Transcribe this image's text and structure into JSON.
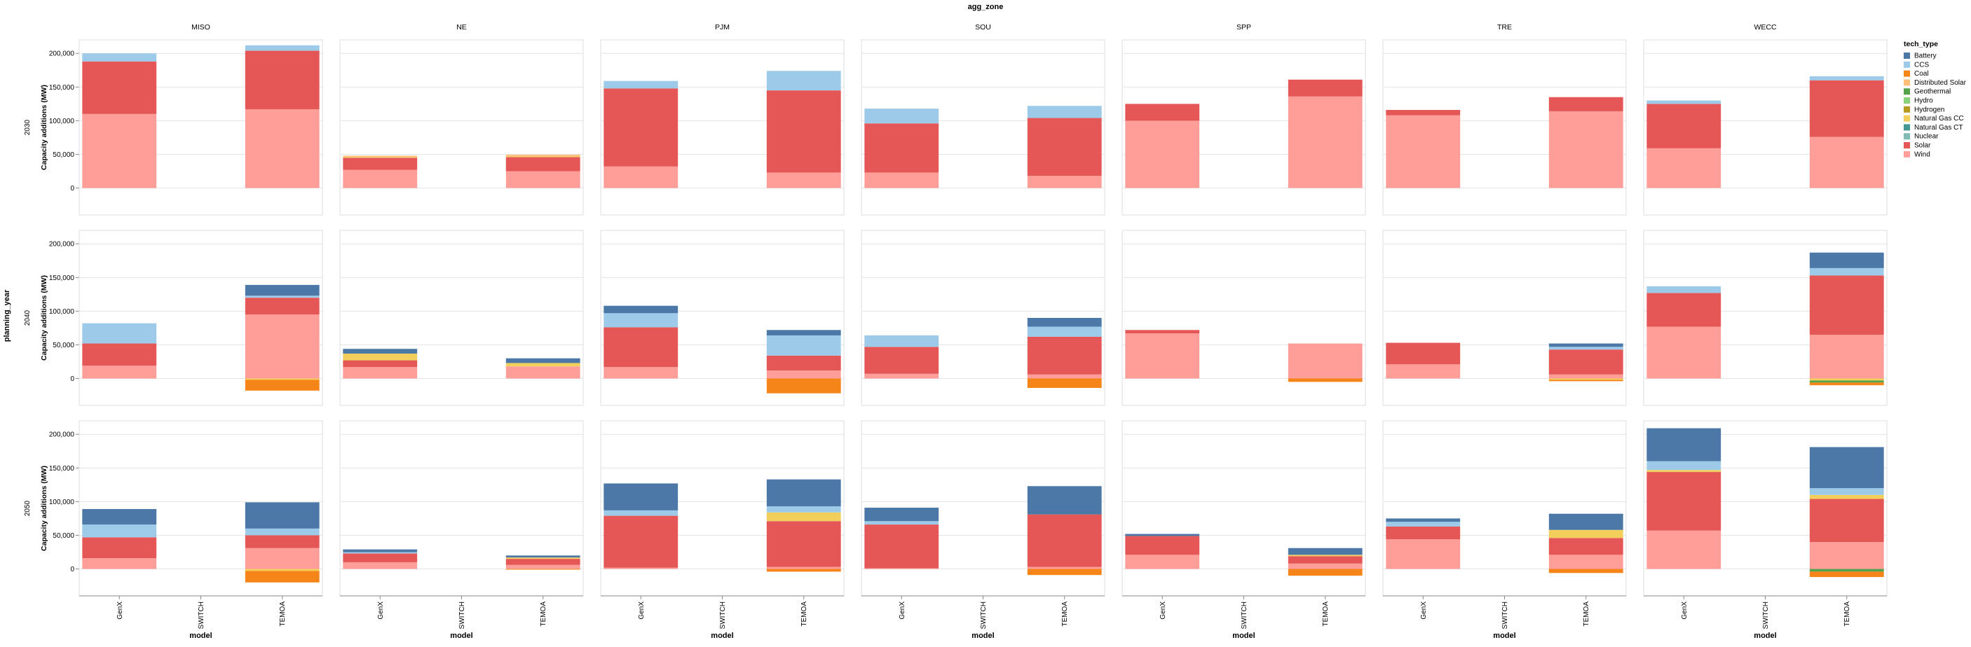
{
  "chart_data": {
    "type": "bar",
    "stacked": true,
    "title": "agg_zone",
    "ylabel": "Capacity additions (MW)",
    "row_title": "planning_year",
    "xlabel": "model",
    "columns": [
      "MISO",
      "NE",
      "PJM",
      "SOU",
      "SPP",
      "TRE",
      "WECC"
    ],
    "rows": [
      "2030",
      "2040",
      "2050"
    ],
    "categories": [
      "GenX",
      "SWITCH",
      "TEMOA"
    ],
    "ylim": [
      -40000,
      220000
    ],
    "yticks": [
      0,
      50000,
      100000,
      150000,
      200000
    ],
    "ytick_labels": [
      "0",
      "50,000",
      "100,000",
      "150,000",
      "200,000"
    ],
    "grid": true,
    "legend": {
      "title": "tech_type",
      "position": "right",
      "entries": [
        "Battery",
        "CCS",
        "Coal",
        "Distributed Solar",
        "Geothermal",
        "Hydro",
        "Hydrogen",
        "Natural Gas CC",
        "Natural Gas CT",
        "Nuclear",
        "Solar",
        "Wind"
      ],
      "colors": [
        "#4c78a8",
        "#9ecae9",
        "#f58518",
        "#ffbf79",
        "#54a24b",
        "#88d27a",
        "#b79a20",
        "#f2cf5b",
        "#439894",
        "#83bcb6",
        "#e45756",
        "#ff9d98"
      ]
    },
    "stack_order": [
      "Wind",
      "Solar",
      "Nuclear",
      "Natural Gas CT",
      "Natural Gas CC",
      "Hydrogen",
      "Hydro",
      "Geothermal",
      "Distributed Solar",
      "Coal",
      "CCS",
      "Battery"
    ],
    "panels": [
      {
        "zone": "MISO",
        "year": "2030",
        "bars": [
          {
            "model": "GenX",
            "values": {
              "Wind": 110000,
              "Solar": 78000,
              "CCS": 12000
            }
          },
          {
            "model": "SWITCH",
            "values": {}
          },
          {
            "model": "TEMOA",
            "values": {
              "Wind": 117000,
              "Solar": 87000,
              "CCS": 8000
            }
          }
        ]
      },
      {
        "zone": "NE",
        "year": "2030",
        "bars": [
          {
            "model": "GenX",
            "values": {
              "Wind": 27000,
              "Solar": 18000,
              "Distributed Solar": 2000,
              "Natural Gas CC": 1000
            }
          },
          {
            "model": "SWITCH",
            "values": {}
          },
          {
            "model": "TEMOA",
            "values": {
              "Wind": 25000,
              "Solar": 21000,
              "Distributed Solar": 2000,
              "Natural Gas CC": 1500
            }
          }
        ]
      },
      {
        "zone": "PJM",
        "year": "2030",
        "bars": [
          {
            "model": "GenX",
            "values": {
              "Wind": 32000,
              "Solar": 116000,
              "CCS": 11000
            }
          },
          {
            "model": "SWITCH",
            "values": {}
          },
          {
            "model": "TEMOA",
            "values": {
              "Wind": 23000,
              "Solar": 122000,
              "CCS": 29000
            }
          }
        ]
      },
      {
        "zone": "SOU",
        "year": "2030",
        "bars": [
          {
            "model": "GenX",
            "values": {
              "Wind": 23000,
              "Solar": 73000,
              "CCS": 22000
            }
          },
          {
            "model": "SWITCH",
            "values": {}
          },
          {
            "model": "TEMOA",
            "values": {
              "Wind": 18000,
              "Solar": 86000,
              "CCS": 18000
            }
          }
        ]
      },
      {
        "zone": "SPP",
        "year": "2030",
        "bars": [
          {
            "model": "GenX",
            "values": {
              "Wind": 100000,
              "Solar": 25000
            }
          },
          {
            "model": "SWITCH",
            "values": {}
          },
          {
            "model": "TEMOA",
            "values": {
              "Wind": 136000,
              "Solar": 25000
            }
          }
        ]
      },
      {
        "zone": "TRE",
        "year": "2030",
        "bars": [
          {
            "model": "GenX",
            "values": {
              "Wind": 108000,
              "Solar": 8000
            }
          },
          {
            "model": "SWITCH",
            "values": {}
          },
          {
            "model": "TEMOA",
            "values": {
              "Wind": 114000,
              "Solar": 21000
            }
          }
        ]
      },
      {
        "zone": "WECC",
        "year": "2030",
        "bars": [
          {
            "model": "GenX",
            "values": {
              "Wind": 59000,
              "Solar": 66000,
              "CCS": 5000
            }
          },
          {
            "model": "SWITCH",
            "values": {}
          },
          {
            "model": "TEMOA",
            "values": {
              "Wind": 76000,
              "Solar": 84000,
              "CCS": 6000
            }
          }
        ]
      },
      {
        "zone": "MISO",
        "year": "2040",
        "bars": [
          {
            "model": "GenX",
            "values": {
              "Wind": 19000,
              "Solar": 33000,
              "CCS": 30000
            }
          },
          {
            "model": "SWITCH",
            "values": {}
          },
          {
            "model": "TEMOA",
            "values": {
              "Wind": 95000,
              "Solar": 25000,
              "CCS": 3000,
              "Battery": 16000,
              "Natural Gas CC": -2000,
              "Coal": -16000
            }
          }
        ]
      },
      {
        "zone": "NE",
        "year": "2040",
        "bars": [
          {
            "model": "GenX",
            "values": {
              "Wind": 17000,
              "Solar": 10000,
              "Natural Gas CC": 10000,
              "Battery": 7000
            }
          },
          {
            "model": "SWITCH",
            "values": {}
          },
          {
            "model": "TEMOA",
            "values": {
              "Wind": 18000,
              "Natural Gas CC": 5000,
              "Battery": 7000
            }
          }
        ]
      },
      {
        "zone": "PJM",
        "year": "2040",
        "bars": [
          {
            "model": "GenX",
            "values": {
              "Wind": 17000,
              "Solar": 59000,
              "CCS": 21000,
              "Battery": 11000
            }
          },
          {
            "model": "SWITCH",
            "values": {}
          },
          {
            "model": "TEMOA",
            "values": {
              "Wind": 12000,
              "Solar": 22000,
              "CCS": 30000,
              "Battery": 8000,
              "Coal": -22000
            }
          }
        ]
      },
      {
        "zone": "SOU",
        "year": "2040",
        "bars": [
          {
            "model": "GenX",
            "values": {
              "Wind": 7000,
              "Solar": 40000,
              "CCS": 17000
            }
          },
          {
            "model": "SWITCH",
            "values": {}
          },
          {
            "model": "TEMOA",
            "values": {
              "Wind": 6000,
              "Solar": 56000,
              "CCS": 15000,
              "Battery": 13000,
              "Coal": -14000
            }
          }
        ]
      },
      {
        "zone": "SPP",
        "year": "2040",
        "bars": [
          {
            "model": "GenX",
            "values": {
              "Wind": 67000,
              "Solar": 5000
            }
          },
          {
            "model": "SWITCH",
            "values": {}
          },
          {
            "model": "TEMOA",
            "values": {
              "Wind": 52000,
              "Coal": -5000
            }
          }
        ]
      },
      {
        "zone": "TRE",
        "year": "2040",
        "bars": [
          {
            "model": "GenX",
            "values": {
              "Wind": 21000,
              "Solar": 32000
            }
          },
          {
            "model": "SWITCH",
            "values": {}
          },
          {
            "model": "TEMOA",
            "values": {
              "Wind": 6000,
              "Solar": 37000,
              "CCS": 4000,
              "Battery": 5000,
              "Natural Gas CC": -2000,
              "Coal": -2000
            }
          }
        ]
      },
      {
        "zone": "WECC",
        "year": "2040",
        "bars": [
          {
            "model": "GenX",
            "values": {
              "Wind": 77000,
              "Solar": 50000,
              "CCS": 10000
            }
          },
          {
            "model": "SWITCH",
            "values": {}
          },
          {
            "model": "TEMOA",
            "values": {
              "Wind": 65000,
              "Solar": 88000,
              "CCS": 11000,
              "Battery": 23000,
              "Natural Gas CC": -3000,
              "Geothermal": -3000,
              "Coal": -4000
            }
          }
        ]
      },
      {
        "zone": "MISO",
        "year": "2050",
        "bars": [
          {
            "model": "GenX",
            "values": {
              "Wind": 16000,
              "Solar": 31000,
              "CCS": 19000,
              "Battery": 23000
            }
          },
          {
            "model": "SWITCH",
            "values": {}
          },
          {
            "model": "TEMOA",
            "values": {
              "Wind": 31000,
              "Solar": 19000,
              "CCS": 10000,
              "Battery": 39000,
              "Natural Gas CC": -3000,
              "Coal": -17000
            }
          }
        ]
      },
      {
        "zone": "NE",
        "year": "2050",
        "bars": [
          {
            "model": "GenX",
            "values": {
              "Wind": 10000,
              "Solar": 13000,
              "CCS": 2000,
              "Battery": 4000
            }
          },
          {
            "model": "SWITCH",
            "values": {}
          },
          {
            "model": "TEMOA",
            "values": {
              "Wind": 6000,
              "Solar": 9000,
              "Natural Gas CC": 2000,
              "Battery": 3000,
              "Coal": -1000
            }
          }
        ]
      },
      {
        "zone": "PJM",
        "year": "2050",
        "bars": [
          {
            "model": "GenX",
            "values": {
              "Wind": 2000,
              "Solar": 77000,
              "CCS": 8000,
              "Battery": 40000
            }
          },
          {
            "model": "SWITCH",
            "values": {}
          },
          {
            "model": "TEMOA",
            "values": {
              "Wind": 3000,
              "Solar": 68000,
              "Natural Gas CC": 13000,
              "CCS": 9000,
              "Battery": 40000,
              "Coal": -4000
            }
          }
        ]
      },
      {
        "zone": "SOU",
        "year": "2050",
        "bars": [
          {
            "model": "GenX",
            "values": {
              "Wind": 1000,
              "Solar": 65000,
              "CCS": 5000,
              "Battery": 20000
            }
          },
          {
            "model": "SWITCH",
            "values": {}
          },
          {
            "model": "TEMOA",
            "values": {
              "Wind": 3000,
              "Solar": 78000,
              "Battery": 42000,
              "Coal": -9000
            }
          }
        ]
      },
      {
        "zone": "SPP",
        "year": "2050",
        "bars": [
          {
            "model": "GenX",
            "values": {
              "Wind": 21000,
              "Solar": 28000,
              "Battery": 3000
            }
          },
          {
            "model": "SWITCH",
            "values": {}
          },
          {
            "model": "TEMOA",
            "values": {
              "Wind": 8000,
              "Solar": 11000,
              "Natural Gas CC": 2000,
              "Battery": 10000,
              "Coal": -10000
            }
          }
        ]
      },
      {
        "zone": "TRE",
        "year": "2050",
        "bars": [
          {
            "model": "GenX",
            "values": {
              "Wind": 44000,
              "Solar": 19000,
              "CCS": 7000,
              "Battery": 5000
            }
          },
          {
            "model": "SWITCH",
            "values": {}
          },
          {
            "model": "TEMOA",
            "values": {
              "Wind": 21000,
              "Solar": 25000,
              "Natural Gas CC": 12000,
              "Battery": 24000,
              "Coal": -6000
            }
          }
        ]
      },
      {
        "zone": "WECC",
        "year": "2050",
        "bars": [
          {
            "model": "GenX",
            "values": {
              "Wind": 57000,
              "Solar": 87000,
              "Natural Gas CC": 3000,
              "CCS": 13000,
              "Battery": 49000
            }
          },
          {
            "model": "SWITCH",
            "values": {}
          },
          {
            "model": "TEMOA",
            "values": {
              "Wind": 40000,
              "Solar": 64000,
              "Natural Gas CC": 6000,
              "CCS": 10000,
              "Battery": 61000,
              "Geothermal": -4000,
              "Coal": -8000
            }
          }
        ]
      }
    ]
  }
}
